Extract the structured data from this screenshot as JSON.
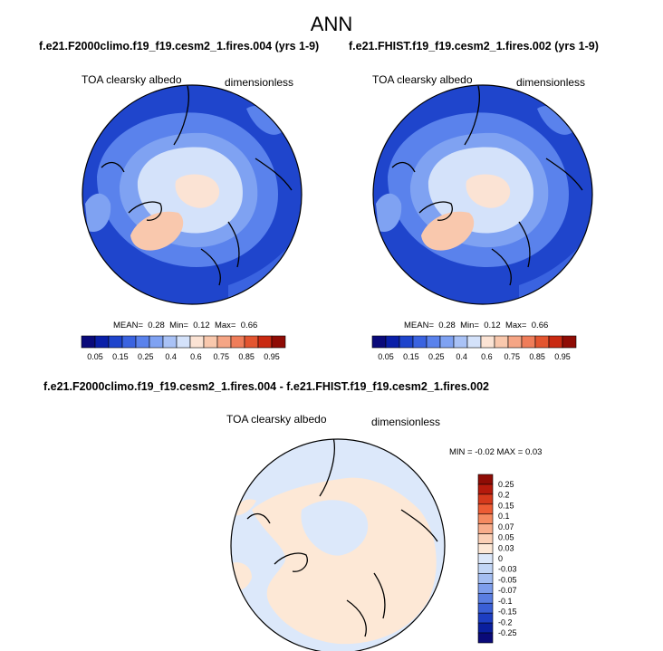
{
  "figure": {
    "title": "ANN",
    "panels": [
      {
        "case": "f.e21.F2000climo.f19_f19.cesm2_1.fires.004 (yrs 1-9)",
        "variable": "TOA clearsky albedo",
        "units": "dimensionless",
        "stats": {
          "mean_label": "MEAN=",
          "mean": "0.28",
          "min_label": "Min=",
          "min": "0.12",
          "max_label": "Max=",
          "max": "0.66"
        }
      },
      {
        "case": "f.e21.FHIST.f19_f19.cesm2_1.fires.002 (yrs 1-9)",
        "variable": "TOA clearsky albedo",
        "units": "dimensionless",
        "stats": {
          "mean_label": "MEAN=",
          "mean": "0.28",
          "min_label": "Min=",
          "min": "0.12",
          "max_label": "Max=",
          "max": "0.66"
        }
      }
    ],
    "difference": {
      "case": "f.e21.F2000climo.f19_f19.cesm2_1.fires.004 - f.e21.FHIST.f19_f19.cesm2_1.fires.002",
      "variable": "TOA clearsky albedo",
      "units": "dimensionless",
      "stats": "MIN = -0.02 MAX = 0.03"
    },
    "colorbar_main": {
      "colors": [
        "#0a0a7a",
        "#0a1fa8",
        "#1f45cc",
        "#3a63e0",
        "#5a82ec",
        "#7fa2f2",
        "#a9c2f6",
        "#d4e2fa",
        "#fbe3d4",
        "#f9c8ad",
        "#f5a585",
        "#ef7d5a",
        "#e35530",
        "#c92a12",
        "#8f0c05"
      ],
      "labels": [
        "0.05",
        "0.15",
        "0.25",
        "0.4",
        "0.6",
        "0.75",
        "0.85",
        "0.95"
      ]
    },
    "colorbar_diff": {
      "colors": [
        "#8f0c05",
        "#b51a0c",
        "#d63a1c",
        "#ed5c34",
        "#f58a60",
        "#f8ad8b",
        "#fbd0b6",
        "#fde8d6",
        "#dce8fa",
        "#c2d6f6",
        "#a4bef2",
        "#7e9eec",
        "#5a7ee2",
        "#3a5fd6",
        "#1d3ec2",
        "#0a1f9e",
        "#0a0a78"
      ],
      "labels": [
        "0.25",
        "0.2",
        "0.15",
        "0.1",
        "0.07",
        "0.05",
        "0.03",
        "0",
        "-0.03",
        "-0.05",
        "-0.07",
        "-0.1",
        "-0.15",
        "-0.2",
        "-0.25"
      ]
    }
  }
}
